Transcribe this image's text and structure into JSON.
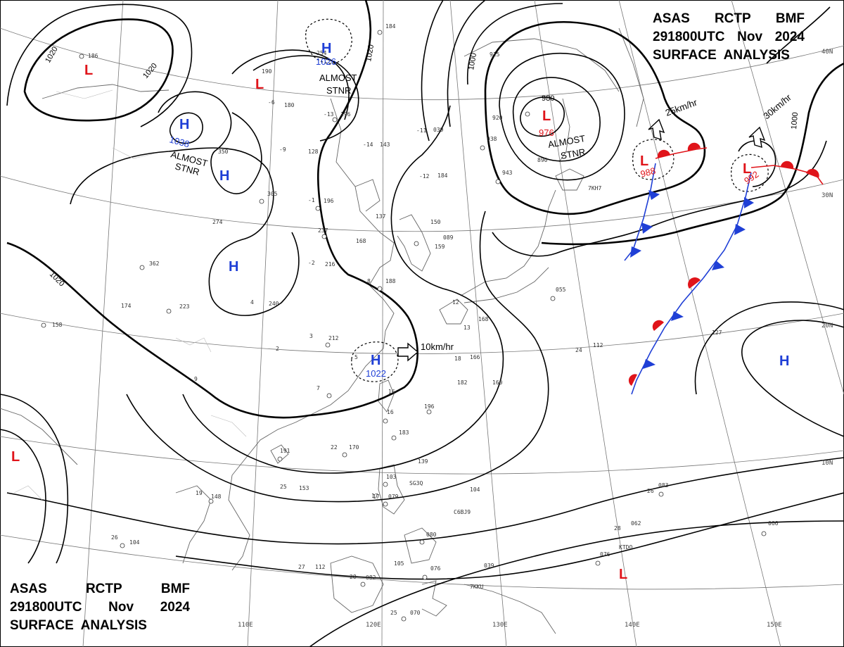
{
  "titles": {
    "top_right": {
      "line1": [
        "ASAS",
        "RCTP",
        "BMF"
      ],
      "line2": [
        "291800UTC",
        "Nov",
        "2024"
      ],
      "line3": "SURFACE  ANALYSIS"
    },
    "bottom_left": {
      "line1": [
        "ASAS",
        "RCTP",
        "BMF"
      ],
      "line2": [
        "291800UTC",
        "Nov",
        "2024"
      ],
      "line3": "SURFACE  ANALYSIS"
    }
  },
  "graticule": {
    "lon_labels": [
      "110E",
      "120E",
      "130E",
      "140E",
      "150E"
    ],
    "lat_labels": [
      "40N",
      "30N",
      "20N",
      "10N"
    ]
  },
  "colors": {
    "high": "#1f3fd6",
    "low": "#e0141a",
    "isobar": "#000000",
    "front_cold": "#1f3fd6",
    "front_warm": "#e0141a",
    "coast": "#666666"
  },
  "isobar_labels": [
    "1020",
    "1020",
    "1020",
    "1020",
    "1000",
    "1000",
    "980"
  ],
  "pressure_centers": [
    {
      "kind": "H",
      "value": "1038",
      "note": ""
    },
    {
      "kind": "H",
      "value": "",
      "note": ""
    },
    {
      "kind": "H",
      "value": "",
      "note": ""
    },
    {
      "kind": "H",
      "value": "1026",
      "note": ""
    },
    {
      "kind": "H",
      "value": "1022",
      "note": ""
    },
    {
      "kind": "H",
      "value": "",
      "note": ""
    },
    {
      "kind": "L",
      "value": "",
      "note": ""
    },
    {
      "kind": "L",
      "value": "",
      "note": ""
    },
    {
      "kind": "L",
      "value": "976",
      "note": ""
    },
    {
      "kind": "L",
      "value": "988",
      "note": ""
    },
    {
      "kind": "L",
      "value": "992",
      "note": ""
    },
    {
      "kind": "L",
      "value": "",
      "note": ""
    },
    {
      "kind": "L",
      "value": "",
      "note": ""
    }
  ],
  "annotations": {
    "almost_stnr_1": [
      "ALMOST",
      "STNR"
    ],
    "almost_stnr_2": [
      "ALMOST",
      "STNR"
    ],
    "almost_stnr_3": [
      "ALMOST",
      "STNR"
    ],
    "motion_1": "10km/hr",
    "motion_2": "25km/hr",
    "motion_3": "30km/hr"
  },
  "station_plots": [
    "186",
    "190",
    "180",
    "350",
    "305",
    "274",
    "362",
    "174",
    "158",
    "223",
    "240",
    "196",
    "237",
    "216",
    "212",
    "143",
    "137",
    "168",
    "188",
    "159",
    "150",
    "089",
    "055",
    "168",
    "112",
    "127",
    "166",
    "182",
    "160",
    "196",
    "183",
    "170",
    "191",
    "148",
    "153",
    "139",
    "103",
    "104",
    "079",
    "080",
    "105",
    "082",
    "076",
    "039",
    "070",
    "062",
    "076",
    "083",
    "066",
    "104",
    "112",
    "039",
    "184",
    "254",
    "196",
    "128",
    "920",
    "943",
    "890",
    "938",
    "184",
    "915"
  ],
  "station_temps": [
    "-6",
    "-9",
    "-1",
    "-2",
    "3",
    "8",
    "9",
    "16",
    "18",
    "12",
    "22",
    "25",
    "26",
    "27",
    "28",
    "19",
    "17",
    "25",
    "28",
    "26",
    "24",
    "-12",
    "-14",
    "-11",
    "-13",
    "7",
    "5",
    "4",
    "2",
    "13",
    "16",
    "17"
  ],
  "callsigns": [
    "C6BJ9",
    "7KKU",
    "KTDQ",
    "SG3Q",
    "7KH7"
  ]
}
